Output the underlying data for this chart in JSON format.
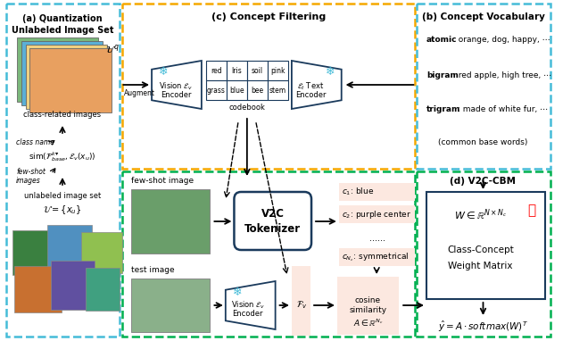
{
  "bg_color": "#ffffff",
  "panel_colors": {
    "cyan": "#45bcd8",
    "orange": "#f5a800",
    "green": "#00b050",
    "dark_blue": "#1a3a5c"
  },
  "concept_bg": "#fce8e0",
  "cosine_bg": "#fce8e0",
  "vocab_lines": [
    [
      "atomic",
      ": orange, dog, happy, ⋯"
    ],
    [
      "bigram",
      ": red apple, high tree, ⋯"
    ],
    [
      "trigram",
      ": made of white fur, ⋯"
    ],
    [
      "",
      "(common base words)"
    ]
  ],
  "codebook_top": [
    "red",
    "Iris",
    "soil",
    "pink"
  ],
  "codebook_bot": [
    "grass",
    "blue",
    "bee",
    "stem"
  ],
  "concept_items": [
    "$c_1$: blue",
    "$c_2$: purple center",
    "......",
    "$c_{N_c}$: symmetrical"
  ]
}
